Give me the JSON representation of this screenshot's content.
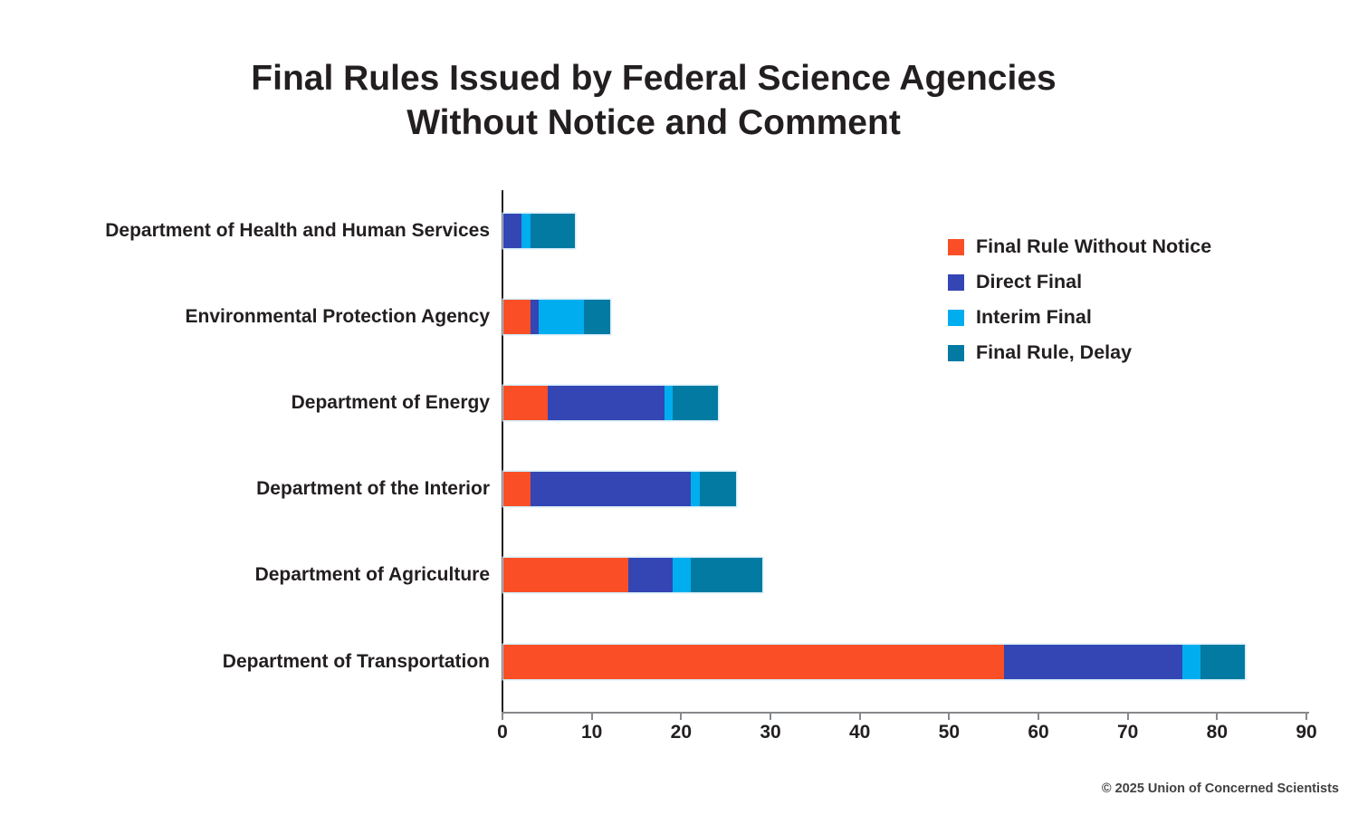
{
  "header": {
    "title_line1": "Final Rules Issued by Federal Science Agencies",
    "title_line2": "Without Notice and Comment"
  },
  "footer": {
    "credit": "© 2025 Union of Concerned Scientists"
  },
  "chart_data": {
    "type": "bar",
    "orientation": "horizontal-stacked",
    "title": "Final Rules Issued by Federal Science Agencies Without Notice and Comment",
    "categories": [
      "Department of Health and Human Services",
      "Environmental Protection Agency",
      "Department of Energy",
      "Department of the Interior",
      "Department of Agriculture",
      "Department of Transportation"
    ],
    "series": [
      {
        "name": "Final Rule Without Notice",
        "color": "#FA4F26",
        "values": [
          0,
          3,
          5,
          3,
          14,
          56
        ]
      },
      {
        "name": "Direct Final",
        "color": "#3445B4",
        "values": [
          2,
          1,
          13,
          18,
          5,
          20
        ]
      },
      {
        "name": "Interim Final",
        "color": "#00AEEF",
        "values": [
          1,
          5,
          1,
          1,
          2,
          2
        ]
      },
      {
        "name": "Final Rule, Delay",
        "color": "#037AA2",
        "values": [
          5,
          3,
          5,
          4,
          8,
          5
        ]
      }
    ],
    "xlim": [
      0,
      90
    ],
    "x_ticks": [
      0,
      10,
      20,
      30,
      40,
      50,
      60,
      70,
      80,
      90
    ],
    "grid": false,
    "legend_position": "upper-right",
    "colors": {
      "text": "#231f20",
      "axis_line": "#87898c",
      "background": "#ffffff"
    }
  }
}
